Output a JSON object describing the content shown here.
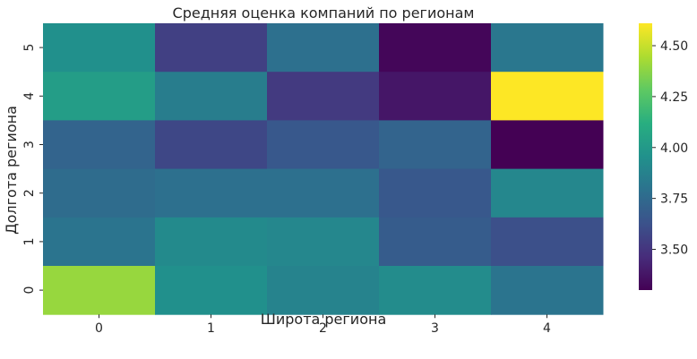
{
  "chart_data": {
    "type": "heatmap",
    "title": "Средняя оценка компаний по регионам",
    "xlabel": "Широта региона",
    "ylabel": "Долгота региона",
    "x_categories": [
      "0",
      "1",
      "2",
      "3",
      "4"
    ],
    "y_categories": [
      "5",
      "4",
      "3",
      "2",
      "1",
      "0"
    ],
    "values": [
      [
        3.95,
        3.55,
        3.78,
        3.32,
        3.82
      ],
      [
        4.02,
        3.85,
        3.52,
        3.38,
        4.61
      ],
      [
        3.72,
        3.58,
        3.66,
        3.72,
        3.3
      ],
      [
        3.76,
        3.78,
        3.78,
        3.66,
        3.9
      ],
      [
        3.8,
        3.92,
        3.9,
        3.68,
        3.62
      ],
      [
        4.4,
        3.95,
        3.88,
        3.93,
        3.8
      ]
    ],
    "vmin": 3.3,
    "vmax": 4.61,
    "colormap": "viridis",
    "colorbar_ticks": [
      "3.50",
      "3.75",
      "4.00",
      "4.25",
      "4.50"
    ],
    "colorbar_tick_values": [
      3.5,
      3.75,
      4.0,
      4.25,
      4.5
    ],
    "text_color": "#262626"
  }
}
